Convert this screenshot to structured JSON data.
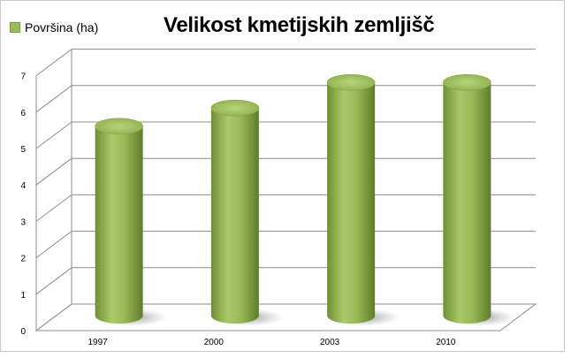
{
  "chart_data": {
    "type": "bar",
    "title": "Velikost kmetijskih zemljišč",
    "categories": [
      "1997",
      "2000",
      "2003",
      "2010"
    ],
    "series": [
      {
        "name": "Površina (ha)",
        "values": [
          5.2,
          5.7,
          6.4,
          6.4
        ]
      }
    ],
    "yticks": [
      0,
      1,
      2,
      3,
      4,
      5,
      6,
      7
    ],
    "ylim": [
      0,
      7
    ],
    "xlabel": "",
    "ylabel": "",
    "grid": true,
    "legend": "top-left",
    "bar_color": "#9bbb59"
  }
}
